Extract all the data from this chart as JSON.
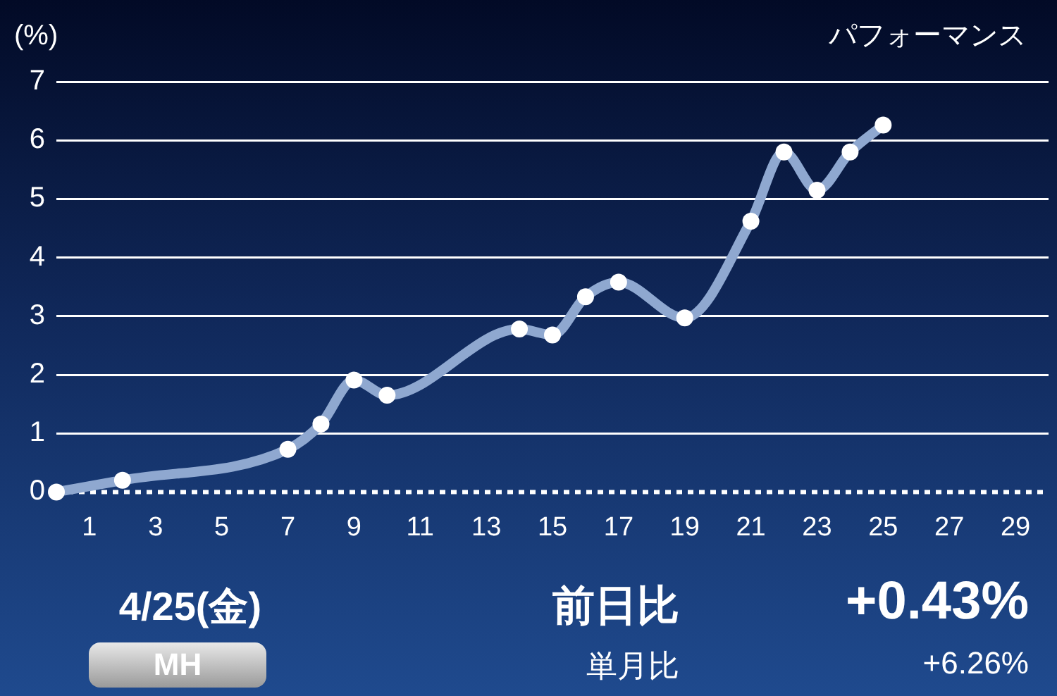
{
  "chart_data": {
    "type": "line",
    "title": "パフォーマンス",
    "ylabel": "(%)",
    "x": [
      0,
      2,
      7,
      8,
      9,
      10,
      14,
      15,
      16,
      17,
      19,
      21,
      22,
      23,
      24,
      25
    ],
    "series": [
      {
        "color": "#8fa8d0",
        "values": [
          0,
          0.2,
          0.73,
          1.16,
          1.91,
          1.65,
          2.78,
          2.68,
          3.33,
          3.58,
          2.97,
          4.62,
          5.8,
          5.15,
          5.8,
          6.26
        ]
      }
    ],
    "xlim": [
      0,
      30
    ],
    "xticks": [
      1,
      3,
      5,
      7,
      9,
      11,
      13,
      15,
      17,
      19,
      21,
      23,
      25,
      27,
      29
    ],
    "ylim": [
      0,
      7
    ],
    "yticks": [
      0,
      1,
      2,
      3,
      4,
      5,
      6,
      7
    ],
    "grid": "y",
    "marker": "circle",
    "line_style": "solid",
    "legend": false,
    "ref_lines": [
      {
        "axis": "y",
        "value": 0,
        "color": "#ffffff",
        "line_style": "dotted"
      }
    ],
    "annotations": [
      "4/25(金)",
      "MH",
      "前日比",
      "+0.43%",
      "単月比",
      "+6.26%"
    ]
  }
}
